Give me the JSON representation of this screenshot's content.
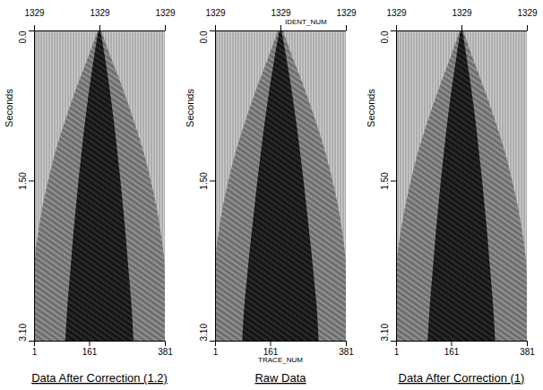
{
  "chart_data": [
    {
      "type": "area",
      "title": "Data After Correction (1.2)",
      "ylabel": "Seconds",
      "xlim": [
        1,
        381
      ],
      "xticks": [
        1,
        161,
        381
      ],
      "top_ticks": [
        {
          "value": 1,
          "label": "1329"
        },
        {
          "value": 191,
          "label": "1329"
        },
        {
          "value": 381,
          "label": "1329"
        }
      ],
      "ylim": [
        0,
        3.1
      ],
      "yticks": [
        {
          "value": 0,
          "label": "0.0"
        },
        {
          "value": 1.5,
          "label": "1.50"
        },
        {
          "value": 3.1,
          "label": "3.10"
        }
      ],
      "y": [
        0,
        0.25,
        0.5,
        0.75,
        1,
        1.25,
        1.5,
        1.75,
        2,
        2.25,
        2.5,
        2.75,
        3.1
      ],
      "series": [
        {
          "color": "#6e6e6e",
          "left": [
            186,
            160,
            132,
            106,
            82,
            60,
            42,
            26,
            14,
            4,
            1,
            1,
            1
          ],
          "right": [
            196,
            222,
            250,
            276,
            300,
            322,
            340,
            356,
            368,
            378,
            381,
            381,
            381
          ]
        },
        {
          "color": "#141414",
          "left": [
            188,
            176,
            165,
            155,
            146,
            138,
            130,
            123,
            116,
            110,
            104,
            98,
            92
          ],
          "right": [
            194,
            206,
            217,
            227,
            236,
            244,
            252,
            259,
            266,
            272,
            278,
            284,
            290
          ]
        }
      ]
    },
    {
      "type": "area",
      "title": "Raw Data",
      "ylabel": "Seconds",
      "xlabel": "TRACE_NUM",
      "x2label": "IDENT_NUM",
      "xlim": [
        1,
        381
      ],
      "xticks": [
        1,
        161,
        381
      ],
      "top_ticks": [
        {
          "value": 1,
          "label": "1329"
        },
        {
          "value": 191,
          "label": "1329"
        },
        {
          "value": 381,
          "label": "1329"
        }
      ],
      "ylim": [
        0,
        3.1
      ],
      "yticks": [
        {
          "value": 0,
          "label": "0.0"
        },
        {
          "value": 1.5,
          "label": "1.50"
        },
        {
          "value": 3.1,
          "label": "3.10"
        }
      ],
      "y": [
        0,
        0.25,
        0.5,
        0.75,
        1,
        1.25,
        1.5,
        1.75,
        2,
        2.25,
        2.5,
        2.75,
        3.1
      ],
      "series": [
        {
          "color": "#6e6e6e",
          "left": [
            184,
            158,
            130,
            104,
            80,
            58,
            40,
            24,
            12,
            3,
            1,
            1,
            1
          ],
          "right": [
            198,
            224,
            252,
            278,
            302,
            324,
            342,
            358,
            370,
            379,
            381,
            381,
            381
          ]
        },
        {
          "color": "#141414",
          "left": [
            188,
            175,
            163,
            152,
            142,
            133,
            124,
            116,
            108,
            100,
            93,
            86,
            80
          ],
          "right": [
            194,
            207,
            219,
            230,
            240,
            249,
            258,
            266,
            274,
            282,
            289,
            296,
            302
          ]
        }
      ]
    },
    {
      "type": "area",
      "title": "Data After Correction (1)",
      "ylabel": "Seconds",
      "xlim": [
        1,
        381
      ],
      "xticks": [
        1,
        161,
        381
      ],
      "top_ticks": [
        {
          "value": 1,
          "label": "1329"
        },
        {
          "value": 191,
          "label": "1329"
        },
        {
          "value": 381,
          "label": "1329"
        }
      ],
      "ylim": [
        0,
        3.1
      ],
      "yticks": [
        {
          "value": 0,
          "label": "0.0"
        },
        {
          "value": 1.5,
          "label": "1.50"
        },
        {
          "value": 3.1,
          "label": "3.10"
        }
      ],
      "y": [
        0,
        0.25,
        0.5,
        0.75,
        1,
        1.25,
        1.5,
        1.75,
        2,
        2.25,
        2.5,
        2.75,
        3.1
      ],
      "series": [
        {
          "color": "#6e6e6e",
          "left": [
            186,
            161,
            134,
            108,
            84,
            62,
            44,
            28,
            15,
            5,
            1,
            1,
            1
          ],
          "right": [
            196,
            221,
            248,
            274,
            298,
            320,
            338,
            354,
            367,
            377,
            381,
            381,
            381
          ]
        },
        {
          "color": "#141414",
          "left": [
            188,
            177,
            166,
            156,
            147,
            139,
            131,
            124,
            117,
            111,
            105,
            99,
            93
          ],
          "right": [
            194,
            205,
            216,
            226,
            235,
            243,
            251,
            258,
            265,
            271,
            277,
            283,
            289
          ]
        }
      ]
    }
  ]
}
